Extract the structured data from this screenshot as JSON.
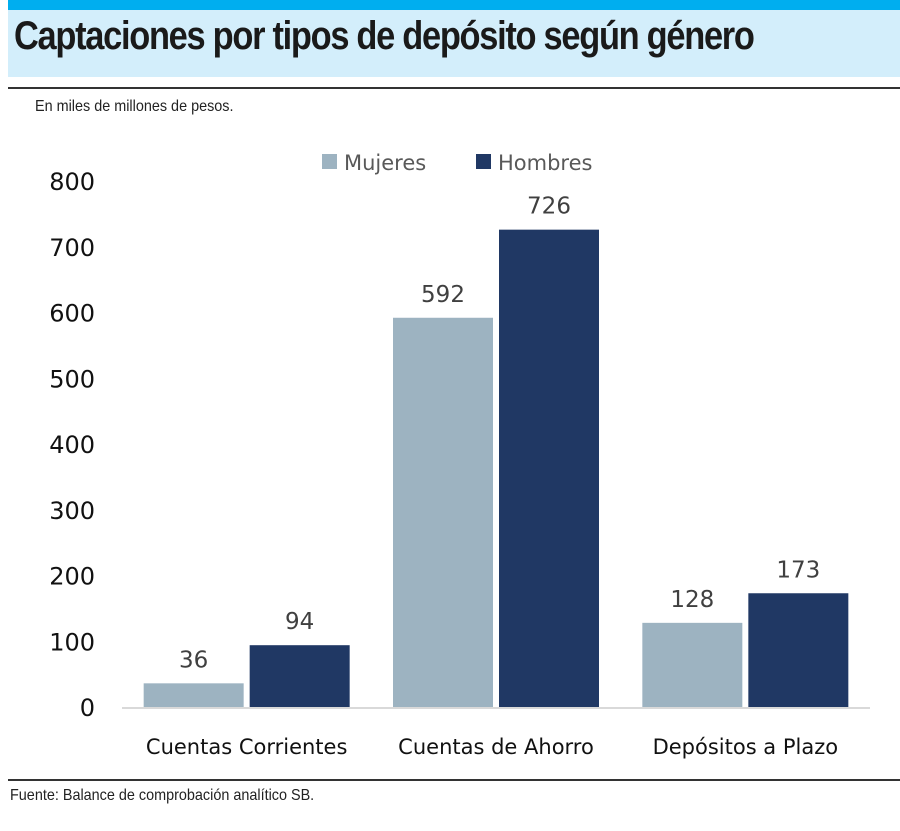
{
  "header": {
    "title": "Captaciones por tipos de depósito según género",
    "subtitle": "En miles de millones de pesos."
  },
  "footer": {
    "source": "Fuente: Balance de comprobación analítico SB."
  },
  "colors": {
    "accent_bar": "#00aeef",
    "title_band": "#d3eefb",
    "mujeres": "#9db3c1",
    "hombres": "#203864"
  },
  "chart_data": {
    "type": "bar",
    "categories": [
      "Cuentas Corrientes",
      "Cuentas de Ahorro",
      "Depósitos a Plazo"
    ],
    "series": [
      {
        "name": "Mujeres",
        "values": [
          36,
          592,
          128
        ],
        "color": "#9db3c1"
      },
      {
        "name": "Hombres",
        "values": [
          94,
          726,
          173
        ],
        "color": "#203864"
      }
    ],
    "ylim": [
      0,
      800
    ],
    "yticks": [
      0,
      100,
      200,
      300,
      400,
      500,
      600,
      700,
      800
    ],
    "grid": false,
    "legend": "top-center",
    "data_labels": true
  }
}
